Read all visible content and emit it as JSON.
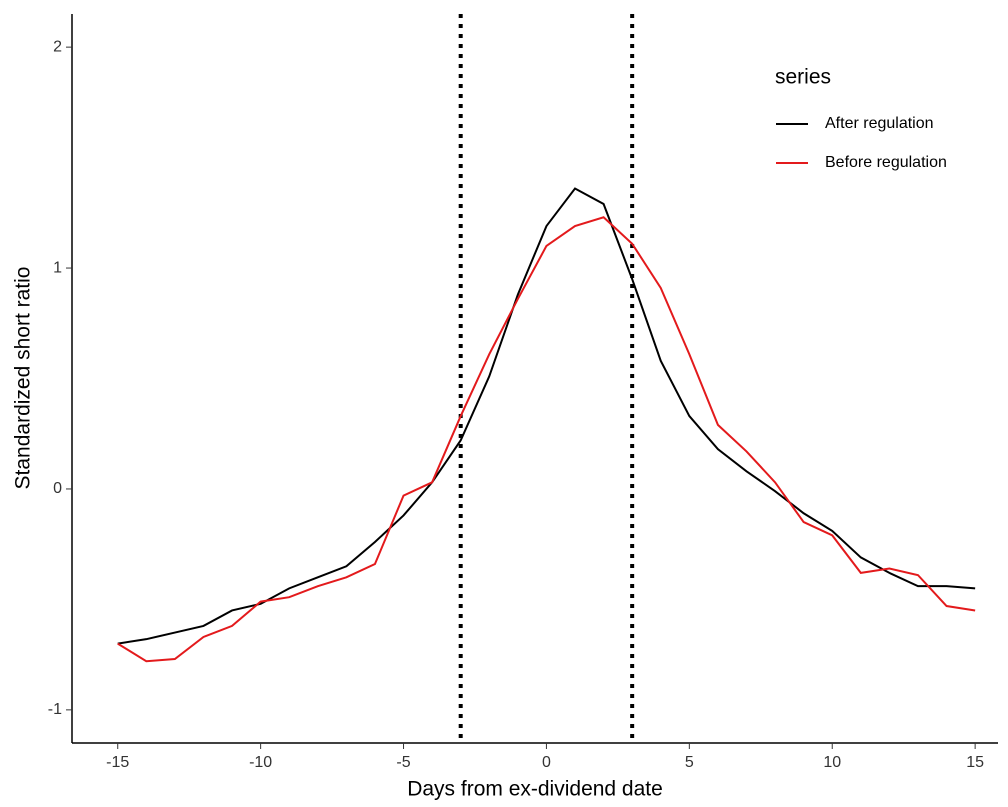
{
  "chart_data": {
    "type": "line",
    "x_label": "Days from ex-dividend date",
    "y_label": "Standardized short ratio",
    "x": [
      -15,
      -14,
      -13,
      -12,
      -11,
      -10,
      -9,
      -8,
      -7,
      -6,
      -5,
      -4,
      -3,
      -2,
      -1,
      0,
      1,
      2,
      3,
      4,
      5,
      6,
      7,
      8,
      9,
      10,
      11,
      12,
      13,
      14,
      15
    ],
    "series": [
      {
        "name": "After regulation",
        "color": "#000000",
        "values": [
          -0.7,
          -0.68,
          -0.65,
          -0.62,
          -0.55,
          -0.52,
          -0.45,
          -0.4,
          -0.35,
          -0.24,
          -0.12,
          0.03,
          0.22,
          0.51,
          0.88,
          1.19,
          1.36,
          1.29,
          0.95,
          0.58,
          0.33,
          0.18,
          0.08,
          -0.01,
          -0.11,
          -0.19,
          -0.31,
          -0.38,
          -0.44,
          -0.44,
          -0.45
        ]
      },
      {
        "name": "Before regulation",
        "color": "#e31a1c",
        "values": [
          -0.7,
          -0.78,
          -0.77,
          -0.67,
          -0.62,
          -0.51,
          -0.49,
          -0.44,
          -0.4,
          -0.34,
          -0.03,
          0.03,
          0.33,
          0.61,
          0.86,
          1.1,
          1.19,
          1.23,
          1.11,
          0.91,
          0.61,
          0.29,
          0.17,
          0.03,
          -0.15,
          -0.21,
          -0.38,
          -0.36,
          -0.39,
          -0.53,
          -0.55
        ]
      }
    ],
    "legend_title": "series",
    "vlines": [
      -3,
      3
    ],
    "xlim": [
      -16.6,
      15.8
    ],
    "xticks": [
      -15,
      -10,
      -5,
      0,
      5,
      10,
      15
    ],
    "ylim": [
      -1.15,
      2.15
    ],
    "yticks": [
      -1,
      0,
      1,
      2
    ],
    "grid": false
  }
}
